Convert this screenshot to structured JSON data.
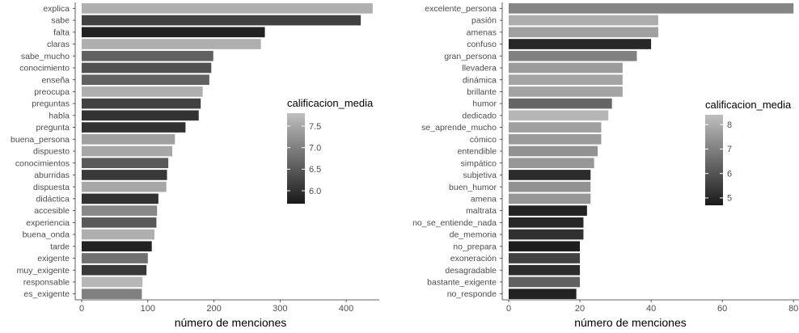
{
  "chart_data": [
    {
      "type": "bar",
      "orientation": "horizontal",
      "xlabel": "número de menciones",
      "ylabel": "",
      "xlim": [
        0,
        450
      ],
      "xticks": [
        0,
        100,
        200,
        300,
        400
      ],
      "grid": false,
      "legend": {
        "title": "calificacion_media",
        "placement": "right",
        "range": [
          5.7,
          7.8
        ],
        "ticks": [
          6.0,
          6.5,
          7.0,
          7.5
        ],
        "tick_labels": [
          "6.0",
          "6.5",
          "7.0",
          "7.5"
        ],
        "color_low": "#1a1a1a",
        "color_high": "#bfbfbf"
      },
      "categories": [
        "explica",
        "sabe",
        "falta",
        "claras",
        "sabe_mucho",
        "conocimiento",
        "enseña",
        "preocupa",
        "preguntas",
        "habla",
        "pregunta",
        "buena_persona",
        "dispuesto",
        "conocimientos",
        "aburridas",
        "dispuesta",
        "didáctica",
        "accesible",
        "experiencia",
        "buena_onda",
        "tarde",
        "exigente",
        "muy_exigente",
        "responsable",
        "es_exigente"
      ],
      "values": [
        440,
        422,
        277,
        271,
        199,
        196,
        193,
        183,
        180,
        177,
        157,
        141,
        137,
        131,
        129,
        128,
        116,
        114,
        113,
        110,
        106,
        100,
        98,
        92,
        91
      ],
      "calificacion_media": [
        7.6,
        6.2,
        5.8,
        7.6,
        6.6,
        6.4,
        6.6,
        7.6,
        6.2,
        6.0,
        6.0,
        7.4,
        7.5,
        6.5,
        6.1,
        7.5,
        6.0,
        7.1,
        6.5,
        7.6,
        5.8,
        6.8,
        6.1,
        7.7,
        7.0
      ]
    },
    {
      "type": "bar",
      "orientation": "horizontal",
      "xlabel": "número de menciones",
      "ylabel": "",
      "xlim": [
        0,
        82
      ],
      "xticks": [
        0,
        20,
        40,
        60,
        80
      ],
      "grid": false,
      "legend": {
        "title": "calificacion_media",
        "placement": "right",
        "range": [
          4.7,
          8.4
        ],
        "ticks": [
          5,
          6,
          7,
          8
        ],
        "tick_labels": [
          "5",
          "6",
          "7",
          "8"
        ],
        "color_low": "#1a1a1a",
        "color_high": "#bfbfbf"
      },
      "categories": [
        "excelente_persona",
        "pasión",
        "amenas",
        "confuso",
        "gran_persona",
        "llevadera",
        "dinámica",
        "brillante",
        "humor",
        "dedicado",
        "se_aprende_mucho",
        "cómico",
        "entendible",
        "simpático",
        "subjetiva",
        "buen_humor",
        "amena",
        "maltrata",
        "no_se_entiende_nada",
        "de_memoria",
        "no_prepara",
        "exoneración",
        "desagradable",
        "bastante_exigente",
        "no_responde"
      ],
      "values": [
        80,
        42,
        42,
        40,
        36,
        32,
        32,
        32,
        29,
        28,
        26,
        26,
        25,
        24,
        23,
        23,
        23,
        22,
        21,
        21,
        20,
        20,
        20,
        20,
        19
      ],
      "calificacion_media": [
        7.1,
        8.0,
        7.7,
        5.0,
        7.0,
        7.6,
        7.8,
        7.8,
        6.4,
        8.2,
        7.7,
        7.6,
        7.4,
        7.5,
        5.1,
        7.4,
        7.5,
        4.9,
        5.0,
        5.2,
        4.8,
        5.6,
        5.1,
        6.3,
        4.9
      ]
    }
  ]
}
